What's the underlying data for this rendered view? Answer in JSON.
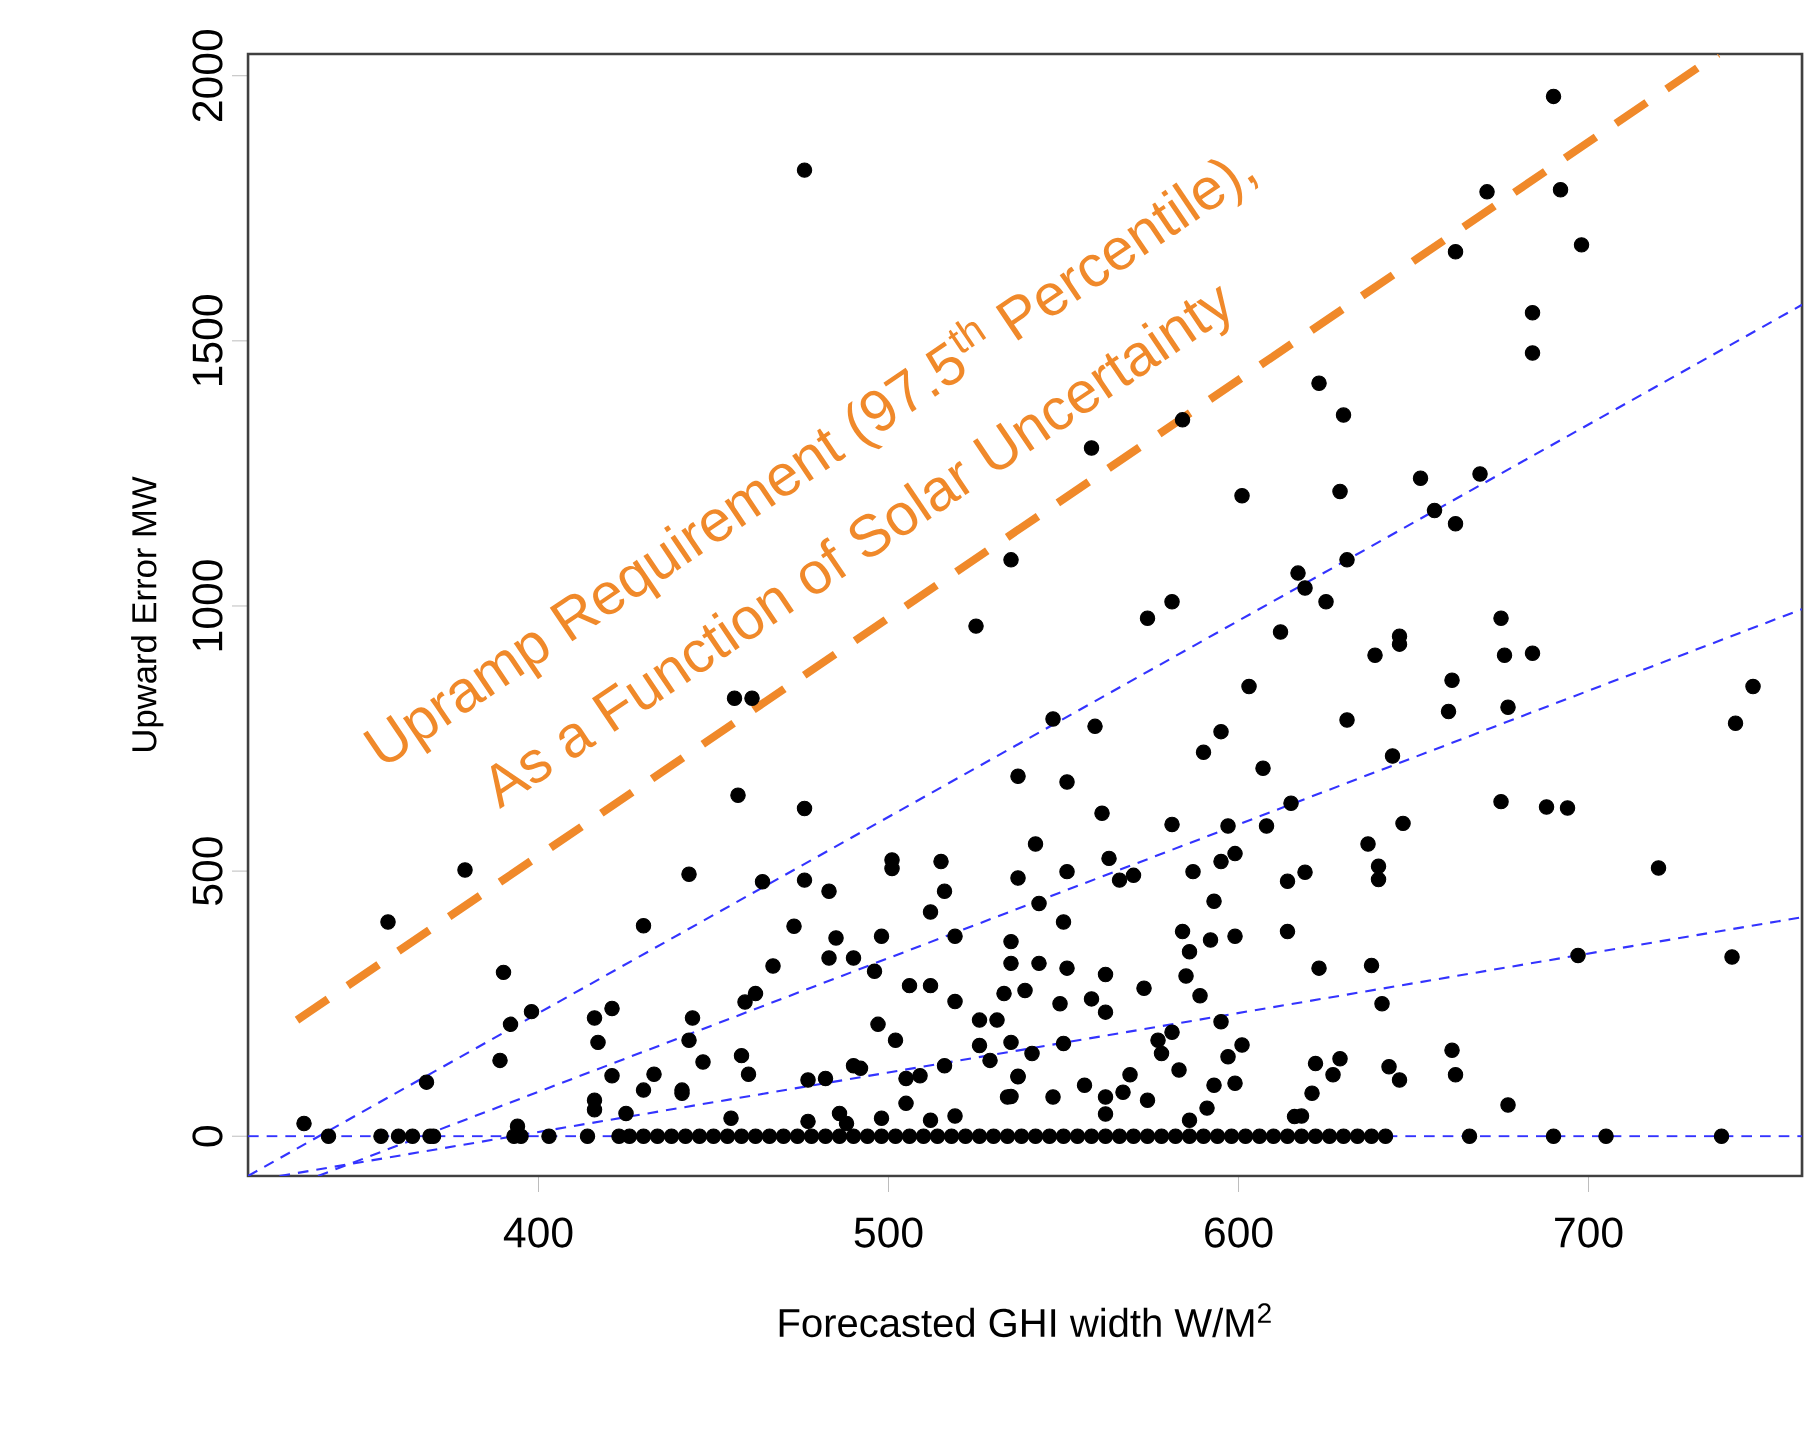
{
  "chart_data": {
    "type": "scatter",
    "xlabel": "Forecasted GHI width W/M$^{2}$",
    "ylabel": "Upward Error MW",
    "xlim": [
      317,
      761
    ],
    "ylim": [
      -75,
      2041
    ],
    "xticks": [
      400,
      500,
      600,
      700
    ],
    "yticks": [
      0,
      500,
      1000,
      1500,
      2000
    ],
    "annotations": [
      "Upramp Requirement (97.5$^{th}$ Percentile),",
      "As a Function of Solar Uncertainty"
    ],
    "series": [
      {
        "marker": "circle",
        "color": "#000000",
        "x": [
          476,
          535,
          525,
          690,
          671,
          692,
          698,
          662,
          684,
          684,
          623,
          630,
          584,
          558,
          601,
          629,
          652,
          669,
          656,
          662,
          631,
          617,
          619,
          625,
          581,
          574,
          612,
          675,
          646,
          461,
          456,
          457,
          476,
          537,
          379,
          357,
          443,
          464,
          476,
          483,
          501,
          501,
          515,
          516,
          512,
          519,
          537,
          430,
          473,
          390,
          467,
          485,
          483,
          490,
          498,
          496,
          506,
          512,
          519,
          398,
          392,
          459,
          462,
          416,
          421,
          444,
          443,
          417,
          421,
          389,
          368,
          447,
          430,
          433,
          441,
          458,
          460,
          477,
          482,
          497,
          502,
          490,
          492,
          505,
          509,
          516,
          526,
          531,
          526,
          535,
          529,
          537,
          535,
          416,
          416,
          425,
          455,
          477,
          486,
          488,
          498,
          512,
          519,
          505,
          441,
          333,
          394,
          639,
          646,
          676,
          684,
          661,
          660,
          677,
          603,
          747,
          742,
          631,
          547,
          559,
          595,
          590,
          607,
          644,
          551,
          561,
          615,
          647,
          581,
          597,
          608,
          675,
          688,
          694,
          542,
          637,
          551,
          563,
          566,
          570,
          587,
          595,
          599,
          614,
          619,
          640,
          640,
          720,
          543,
          550,
          593,
          584,
          586,
          592,
          599,
          614,
          535,
          535,
          543,
          551,
          562,
          573,
          585,
          589,
          623,
          638,
          641,
          697,
          741,
          533,
          539,
          549,
          558,
          562,
          595,
          577,
          578,
          581,
          541,
          550,
          597,
          601,
          622,
          629,
          627,
          661,
          662,
          643,
          646,
          537,
          534,
          547,
          556,
          567,
          569,
          574,
          583,
          593,
          599,
          591,
          621,
          616,
          618,
          677,
          562,
          562,
          586,
          340,
          355,
          360,
          364,
          369,
          370,
          393,
          395,
          403,
          414,
          423,
          426,
          430,
          434,
          438,
          442,
          446,
          450,
          454,
          458,
          462,
          466,
          470,
          474,
          478,
          482,
          486,
          490,
          494,
          498,
          502,
          506,
          510,
          514,
          518,
          522,
          526,
          530,
          534,
          538,
          542,
          546,
          550,
          554,
          558,
          562,
          566,
          570,
          574,
          578,
          582,
          586,
          590,
          594,
          598,
          602,
          606,
          610,
          614,
          618,
          622,
          626,
          630,
          634,
          638,
          642,
          666,
          690,
          705,
          738
        ],
        "values": [
          1822,
          1087,
          962,
          1961,
          1781,
          1785,
          1681,
          1668,
          1553,
          1477,
          1420,
          1360,
          1351,
          1298,
          1208,
          1216,
          1241,
          1249,
          1180,
          1155,
          1087,
          1062,
          1034,
          1008,
          1008,
          977,
          951,
          977,
          943,
          826,
          826,
          643,
          618,
          679,
          502,
          404,
          494,
          480,
          483,
          462,
          521,
          505,
          518,
          462,
          423,
          377,
          487,
          397,
          396,
          309,
          321,
          374,
          336,
          336,
          377,
          311,
          284,
          284,
          254,
          235,
          211,
          253,
          269,
          223,
          241,
          223,
          181,
          177,
          114,
          143,
          102,
          140,
          87,
          117,
          87,
          152,
          117,
          106,
          109,
          211,
          181,
          133,
          128,
          109,
          114,
          133,
          219,
          219,
          171,
          177,
          143,
          113,
          75,
          68,
          50,
          43,
          34,
          28,
          43,
          24,
          34,
          30,
          38,
          62,
          81,
          24,
          19,
          907,
          928,
          907,
          911,
          860,
          801,
          809,
          848,
          848,
          779,
          785,
          787,
          773,
          763,
          724,
          694,
          717,
          668,
          609,
          628,
          590,
          588,
          585,
          585,
          631,
          621,
          619,
          551,
          551,
          499,
          524,
          483,
          492,
          499,
          518,
          533,
          481,
          498,
          509,
          484,
          506,
          439,
          404,
          443,
          386,
          348,
          370,
          377,
          386,
          367,
          326,
          326,
          317,
          305,
          279,
          302,
          265,
          317,
          322,
          250,
          341,
          338,
          269,
          275,
          250,
          259,
          234,
          216,
          181,
          156,
          196,
          156,
          175,
          150,
          172,
          137,
          146,
          116,
          162,
          116,
          131,
          106,
          112,
          74,
          74,
          96,
          83,
          116,
          68,
          125,
          96,
          100,
          53,
          81,
          37,
          38,
          59,
          74,
          42,
          30,
          0,
          0,
          0,
          0,
          0,
          0,
          0,
          0,
          0,
          0,
          0,
          0,
          0,
          0,
          0,
          0,
          0,
          0,
          0,
          0,
          0,
          0,
          0,
          0,
          0,
          0,
          0,
          0,
          0,
          0,
          0,
          0,
          0,
          0,
          0,
          0,
          0,
          0,
          0,
          0,
          0,
          0,
          0,
          0,
          0,
          0,
          0,
          0,
          0,
          0,
          0,
          0,
          0,
          0,
          0,
          0,
          0,
          0,
          0,
          0,
          0,
          0,
          0,
          0,
          0,
          0,
          0,
          0,
          0,
          0
        ]
      },
      {
        "type": "line",
        "color": "#3333ff",
        "line_style": "dashed",
        "x": [
          317,
          761
        ],
        "values": [
          0,
          0
        ]
      },
      {
        "type": "line",
        "color": "#3333ff",
        "line_style": "dashed",
        "x": [
          326,
          761
        ],
        "values": [
          -75,
          413
        ]
      },
      {
        "type": "line",
        "color": "#3333ff",
        "line_style": "dashed",
        "x": [
          337,
          761
        ],
        "values": [
          -75,
          994
        ]
      },
      {
        "type": "line",
        "color": "#3333ff",
        "line_style": "dashed",
        "x": [
          317,
          761
        ],
        "values": [
          -75,
          1568
        ]
      },
      {
        "type": "line",
        "color": "#f0892a",
        "line_style": "dashed",
        "x": [
          331,
          737
        ],
        "values": [
          219,
          2041
        ]
      }
    ]
  }
}
